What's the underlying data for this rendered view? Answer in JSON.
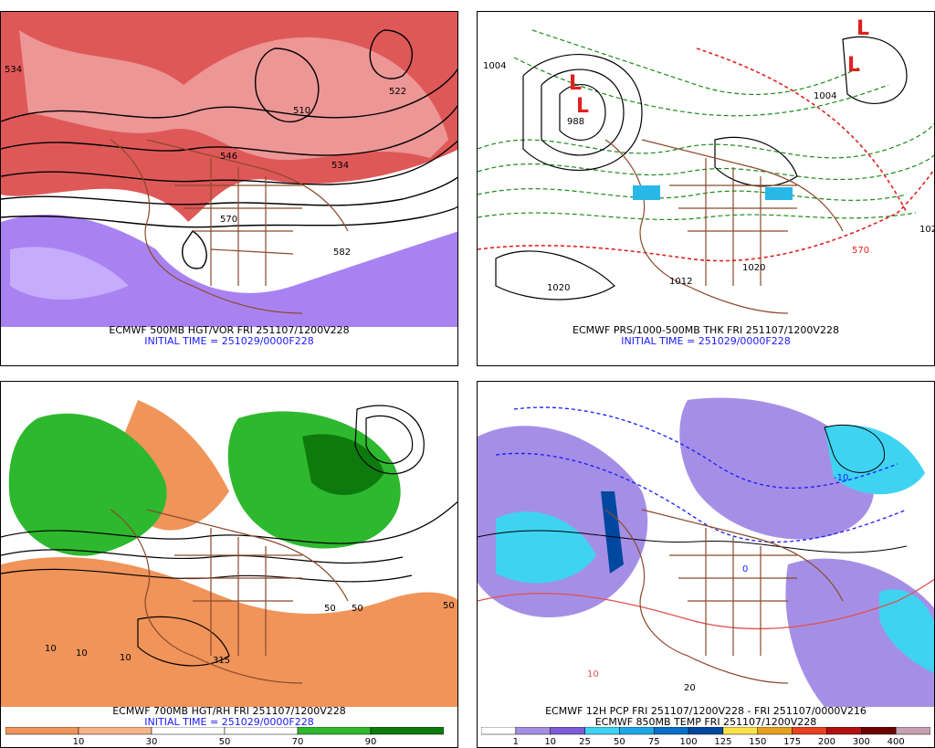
{
  "panels": {
    "tl": {
      "caption1": "ECMWF 500MB HGT/VOR FRI 251107/1200V228",
      "caption2": "INITIAL TIME = 251029/0000F228",
      "labels": [
        "534",
        "510",
        "522",
        "534",
        "546",
        "570",
        "582"
      ]
    },
    "tr": {
      "caption1": "ECMWF PRS/1000-500MB THK FRI 251107/1200V228",
      "caption2": "INITIAL TIME = 251029/0000F228",
      "labels": [
        "1004",
        "988",
        "1020",
        "1020",
        "570",
        "1004",
        "1012",
        "102"
      ]
    },
    "bl": {
      "caption1": "ECMWF 700MB HGT/RH FRI 251107/1200V228",
      "caption2": "INITIAL TIME = 251029/0000F228",
      "labels": [
        "10",
        "10",
        "10",
        "50",
        "50",
        "315",
        "50"
      ],
      "colorbar": {
        "colors": [
          "#f0945a",
          "#f6b48a",
          "#ffffff",
          "#ffffff",
          "#2eb82e",
          "#0d7a0d"
        ],
        "ticks": [
          "10",
          "30",
          "50",
          "70",
          "90"
        ]
      }
    },
    "br": {
      "caption1": "ECMWF 12H PCP FRI 251107/1200V228 - FRI 251107/0000V216",
      "caption2": "ECMWF 850MB TEMP FRI 251107/1200V228",
      "labels": [
        "10",
        "0",
        "-10",
        "20"
      ],
      "colorbar": {
        "colors": [
          "#ffffff",
          "#a58fe6",
          "#7b5bd6",
          "#3fd3f2",
          "#1ea7e8",
          "#0a6fc8",
          "#0047a0",
          "#ffe14a",
          "#e8a020",
          "#e84020",
          "#b01010",
          "#6a0000",
          "#c8a0b4"
        ],
        "ticks": [
          "1",
          "10",
          "25",
          "50",
          "75",
          "100",
          "125",
          "150",
          "175",
          "200",
          "300",
          "400"
        ]
      }
    }
  }
}
